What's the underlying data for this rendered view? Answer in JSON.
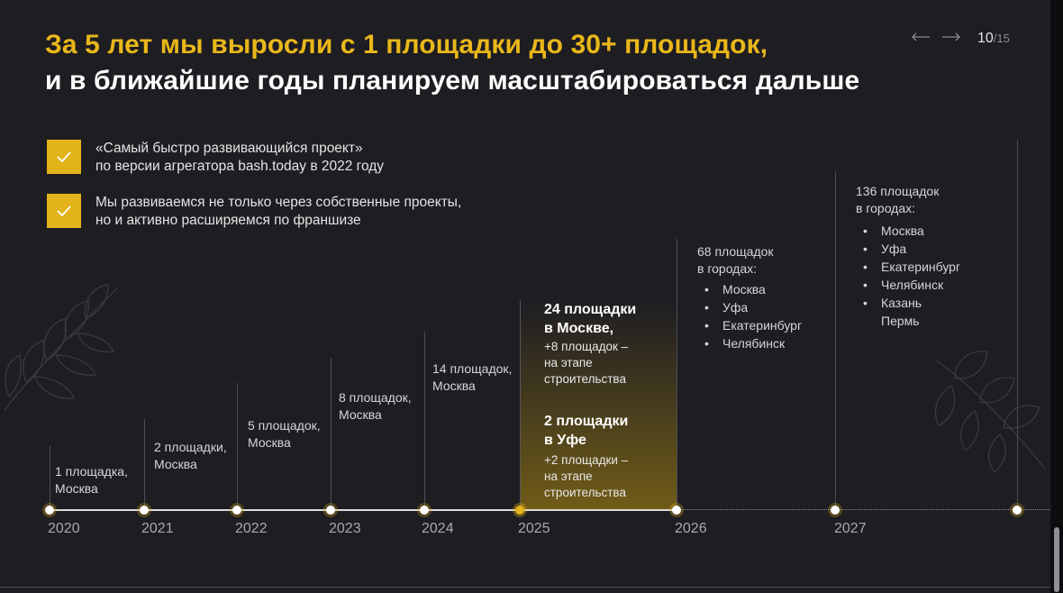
{
  "title": {
    "line1": "За 5 лет мы выросли с 1 площадки до 30+ площадок,",
    "line2": "и в ближайшие годы планируем масштабироваться дальше"
  },
  "nav": {
    "prev_icon": "arrow-left-icon",
    "next_icon": "arrow-right-icon"
  },
  "pager": {
    "current": "10",
    "total": "/15"
  },
  "checks": [
    {
      "line1": "«Самый быстро развивающийся проект»",
      "line2": "по версии агрегатора bash.today в 2022 году"
    },
    {
      "line1": "Мы развиваемся не только через собственные проекты,",
      "line2": "но и активно расширяемся по франшизе"
    }
  ],
  "years": [
    "2020",
    "2021",
    "2022",
    "2023",
    "2024",
    "2025",
    "2026",
    "2027"
  ],
  "milestones": [
    {
      "line1": "1 площадка,",
      "line2": "Москва"
    },
    {
      "line1": "2 площадки,",
      "line2": "Москва"
    },
    {
      "line1": "5 площадок,",
      "line2": "Москва"
    },
    {
      "line1": "8 площадок,",
      "line2": "Москва"
    },
    {
      "line1": "14 площадок,",
      "line2": "Москва"
    }
  ],
  "highlight": {
    "moscow_title_1": "24 площадки",
    "moscow_title_2": "в Москве,",
    "moscow_sub_1": "+8 площадок –",
    "moscow_sub_2": "на этапе",
    "moscow_sub_3": "строительства",
    "ufa_title_1": "2 площадки",
    "ufa_title_2": "в Уфе",
    "ufa_sub_1": "+2 площадки –",
    "ufa_sub_2": "на этапе",
    "ufa_sub_3": "строительства"
  },
  "plan2026": {
    "line1": "68 площадок",
    "line2": "в городах:",
    "cities": [
      "Москва",
      "Уфа",
      "Екатеринбург",
      "Челябинск"
    ]
  },
  "plan2027": {
    "line1": "136 площадок",
    "line2": "в городах:",
    "cities": [
      "Москва",
      "Уфа",
      "Екатеринбург",
      "Челябинск",
      "Казань",
      "Пермь"
    ]
  },
  "colors": {
    "accent": "#e2b31a",
    "background": "#1e1d22"
  }
}
